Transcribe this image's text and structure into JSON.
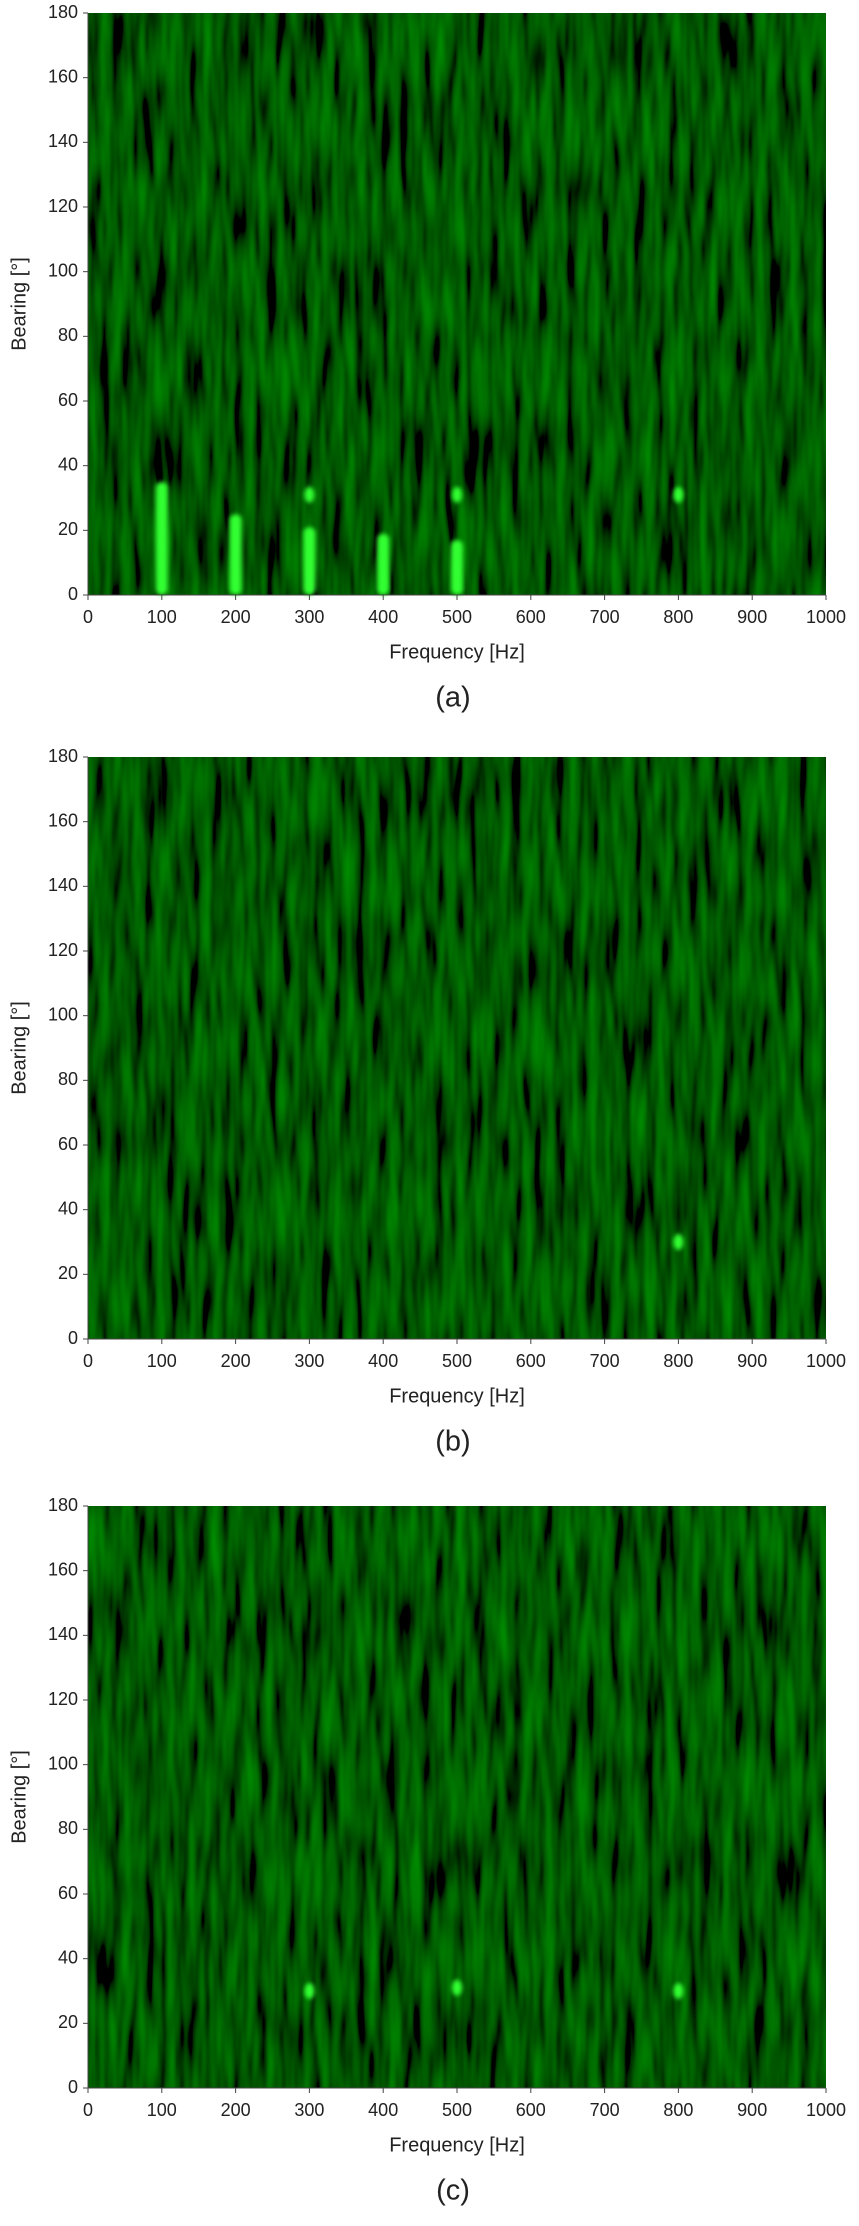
{
  "chart_data": [
    {
      "type": "heatmap",
      "caption": "(a)",
      "xlabel": "Frequency [Hz]",
      "ylabel": "Bearing [°]",
      "xlim": [
        0,
        1000
      ],
      "ylim": [
        0,
        180
      ],
      "xticks": [
        0,
        100,
        200,
        300,
        400,
        500,
        600,
        700,
        800,
        900,
        1000
      ],
      "yticks": [
        0,
        20,
        40,
        60,
        80,
        100,
        120,
        140,
        160,
        180
      ],
      "color": "#33ff33",
      "streaks": [
        {
          "x": 100,
          "y": [
            0,
            35
          ]
        },
        {
          "x": 200,
          "y": [
            0,
            25
          ]
        },
        {
          "x": 300,
          "y": [
            0,
            21
          ]
        },
        {
          "x": 400,
          "y": [
            0,
            19
          ]
        },
        {
          "x": 500,
          "y": [
            0,
            17
          ]
        }
      ],
      "spots": [
        {
          "x": 300,
          "y": 31
        },
        {
          "x": 500,
          "y": 31
        },
        {
          "x": 800,
          "y": 31
        }
      ]
    },
    {
      "type": "heatmap",
      "caption": "(b)",
      "xlabel": "Frequency [Hz]",
      "ylabel": "Bearing [°]",
      "xlim": [
        0,
        1000
      ],
      "ylim": [
        0,
        180
      ],
      "xticks": [
        0,
        100,
        200,
        300,
        400,
        500,
        600,
        700,
        800,
        900,
        1000
      ],
      "yticks": [
        0,
        20,
        40,
        60,
        80,
        100,
        120,
        140,
        160,
        180
      ],
      "color": "#33ff33",
      "streaks": [],
      "spots": [
        {
          "x": 800,
          "y": 30
        }
      ]
    },
    {
      "type": "heatmap",
      "caption": "(c)",
      "xlabel": "Frequency [Hz]",
      "ylabel": "Bearing [°]",
      "xlim": [
        0,
        1000
      ],
      "ylim": [
        0,
        180
      ],
      "xticks": [
        0,
        100,
        200,
        300,
        400,
        500,
        600,
        700,
        800,
        900,
        1000
      ],
      "yticks": [
        0,
        20,
        40,
        60,
        80,
        100,
        120,
        140,
        160,
        180
      ],
      "color": "#33ff33",
      "streaks": [],
      "spots": [
        {
          "x": 300,
          "y": 30
        },
        {
          "x": 500,
          "y": 31
        },
        {
          "x": 800,
          "y": 30
        }
      ]
    }
  ]
}
